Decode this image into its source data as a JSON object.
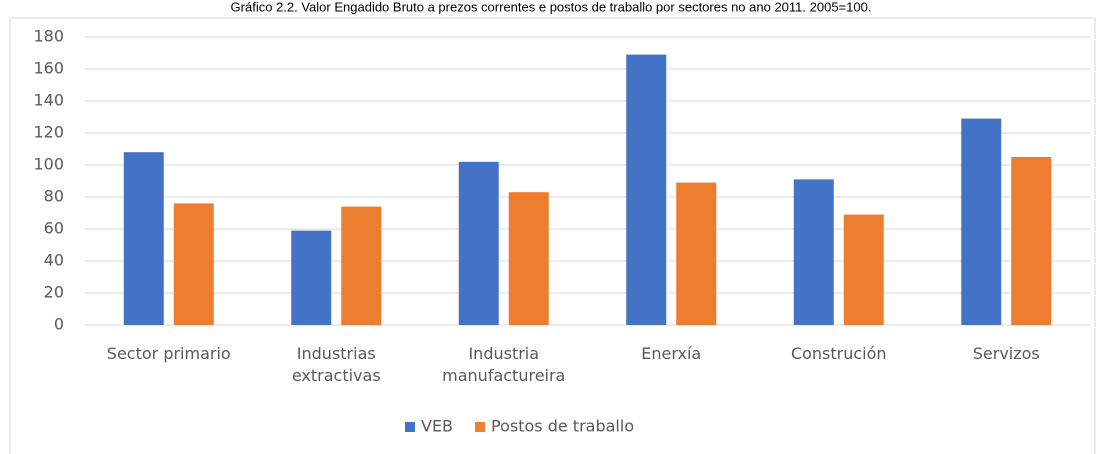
{
  "chart_data": {
    "type": "bar",
    "title": "Gráfico 2.2. Valor Engadido Bruto a prezos correntes e postos de traballo por sectores no ano 2011. 2005=100.",
    "categories": [
      "Sector primario",
      "Industrias extractivas",
      "Industria manufactureira",
      "Enerxía",
      "Construción",
      "Servizos"
    ],
    "series": [
      {
        "name": "VEB",
        "color": "#4472c4",
        "values": [
          108,
          59,
          102,
          169,
          91,
          129
        ]
      },
      {
        "name": "Postos de traballo",
        "color": "#ed7d31",
        "values": [
          76,
          74,
          83,
          89,
          69,
          105
        ]
      }
    ],
    "ylim": [
      0,
      180
    ],
    "yticks": [
      0,
      20,
      40,
      60,
      80,
      100,
      120,
      140,
      160,
      180
    ],
    "grid": true,
    "legend": "bottom"
  }
}
